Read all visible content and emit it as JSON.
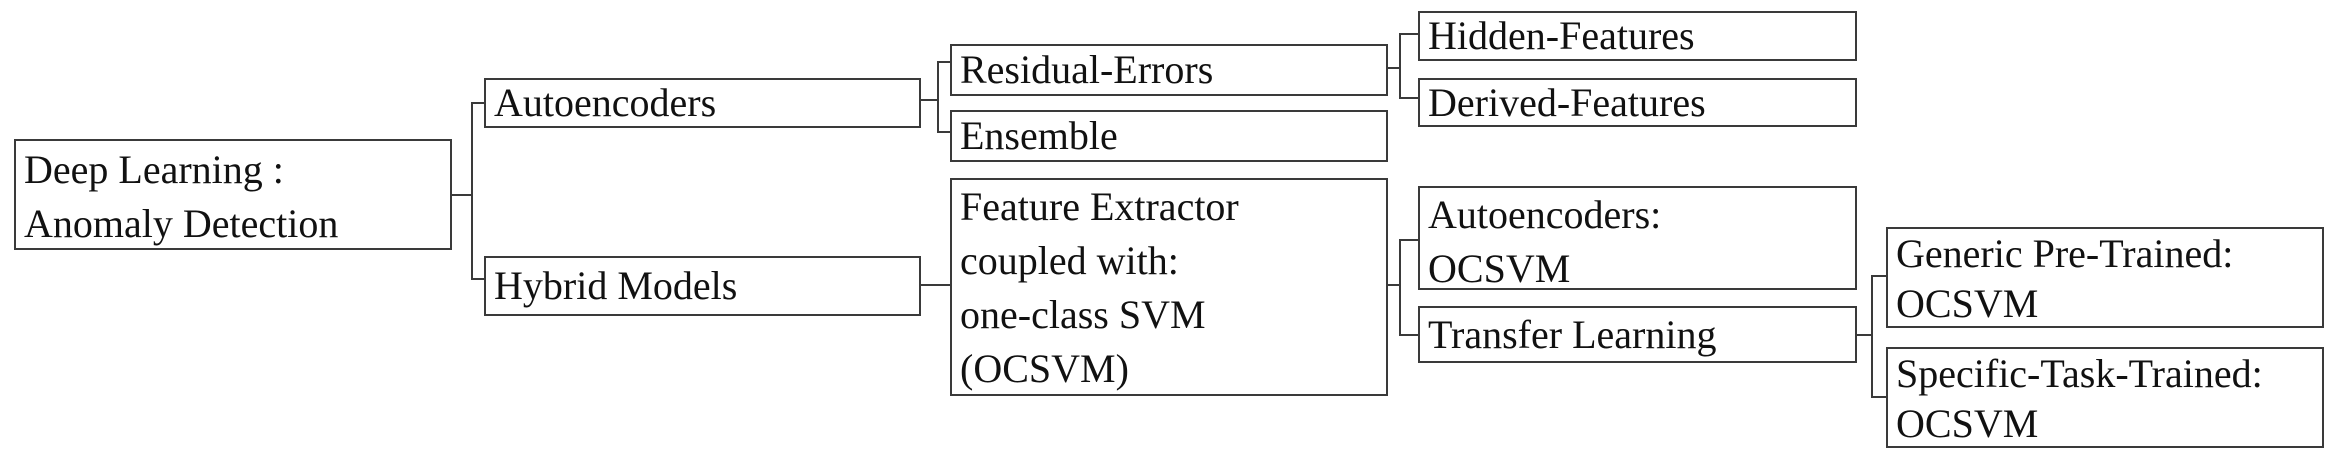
{
  "diagram": {
    "root": {
      "line1": "Deep Learning :",
      "line2": "Anomaly Detection"
    },
    "autoencoders": {
      "label": "Autoencoders"
    },
    "hybrid_models": {
      "label": "Hybrid Models"
    },
    "residual_errors": {
      "label": "Residual-Errors"
    },
    "ensemble": {
      "label": "Ensemble"
    },
    "hidden_features": {
      "label": "Hidden-Features"
    },
    "derived_features": {
      "label": "Derived-Features"
    },
    "feature_extractor": {
      "line1": "Feature Extractor",
      "line2": "coupled with:",
      "line3": "one-class SVM",
      "line4": "(OCSVM)"
    },
    "autoencoders_ocsvm": {
      "line1": "Autoencoders:",
      "line2": "OCSVM"
    },
    "transfer_learning": {
      "label": "Transfer Learning"
    },
    "generic_pretrained": {
      "line1": "Generic Pre-Trained:",
      "line2": "OCSVM"
    },
    "specific_task": {
      "line1": "Specific-Task-Trained:",
      "line2": "OCSVM"
    }
  }
}
